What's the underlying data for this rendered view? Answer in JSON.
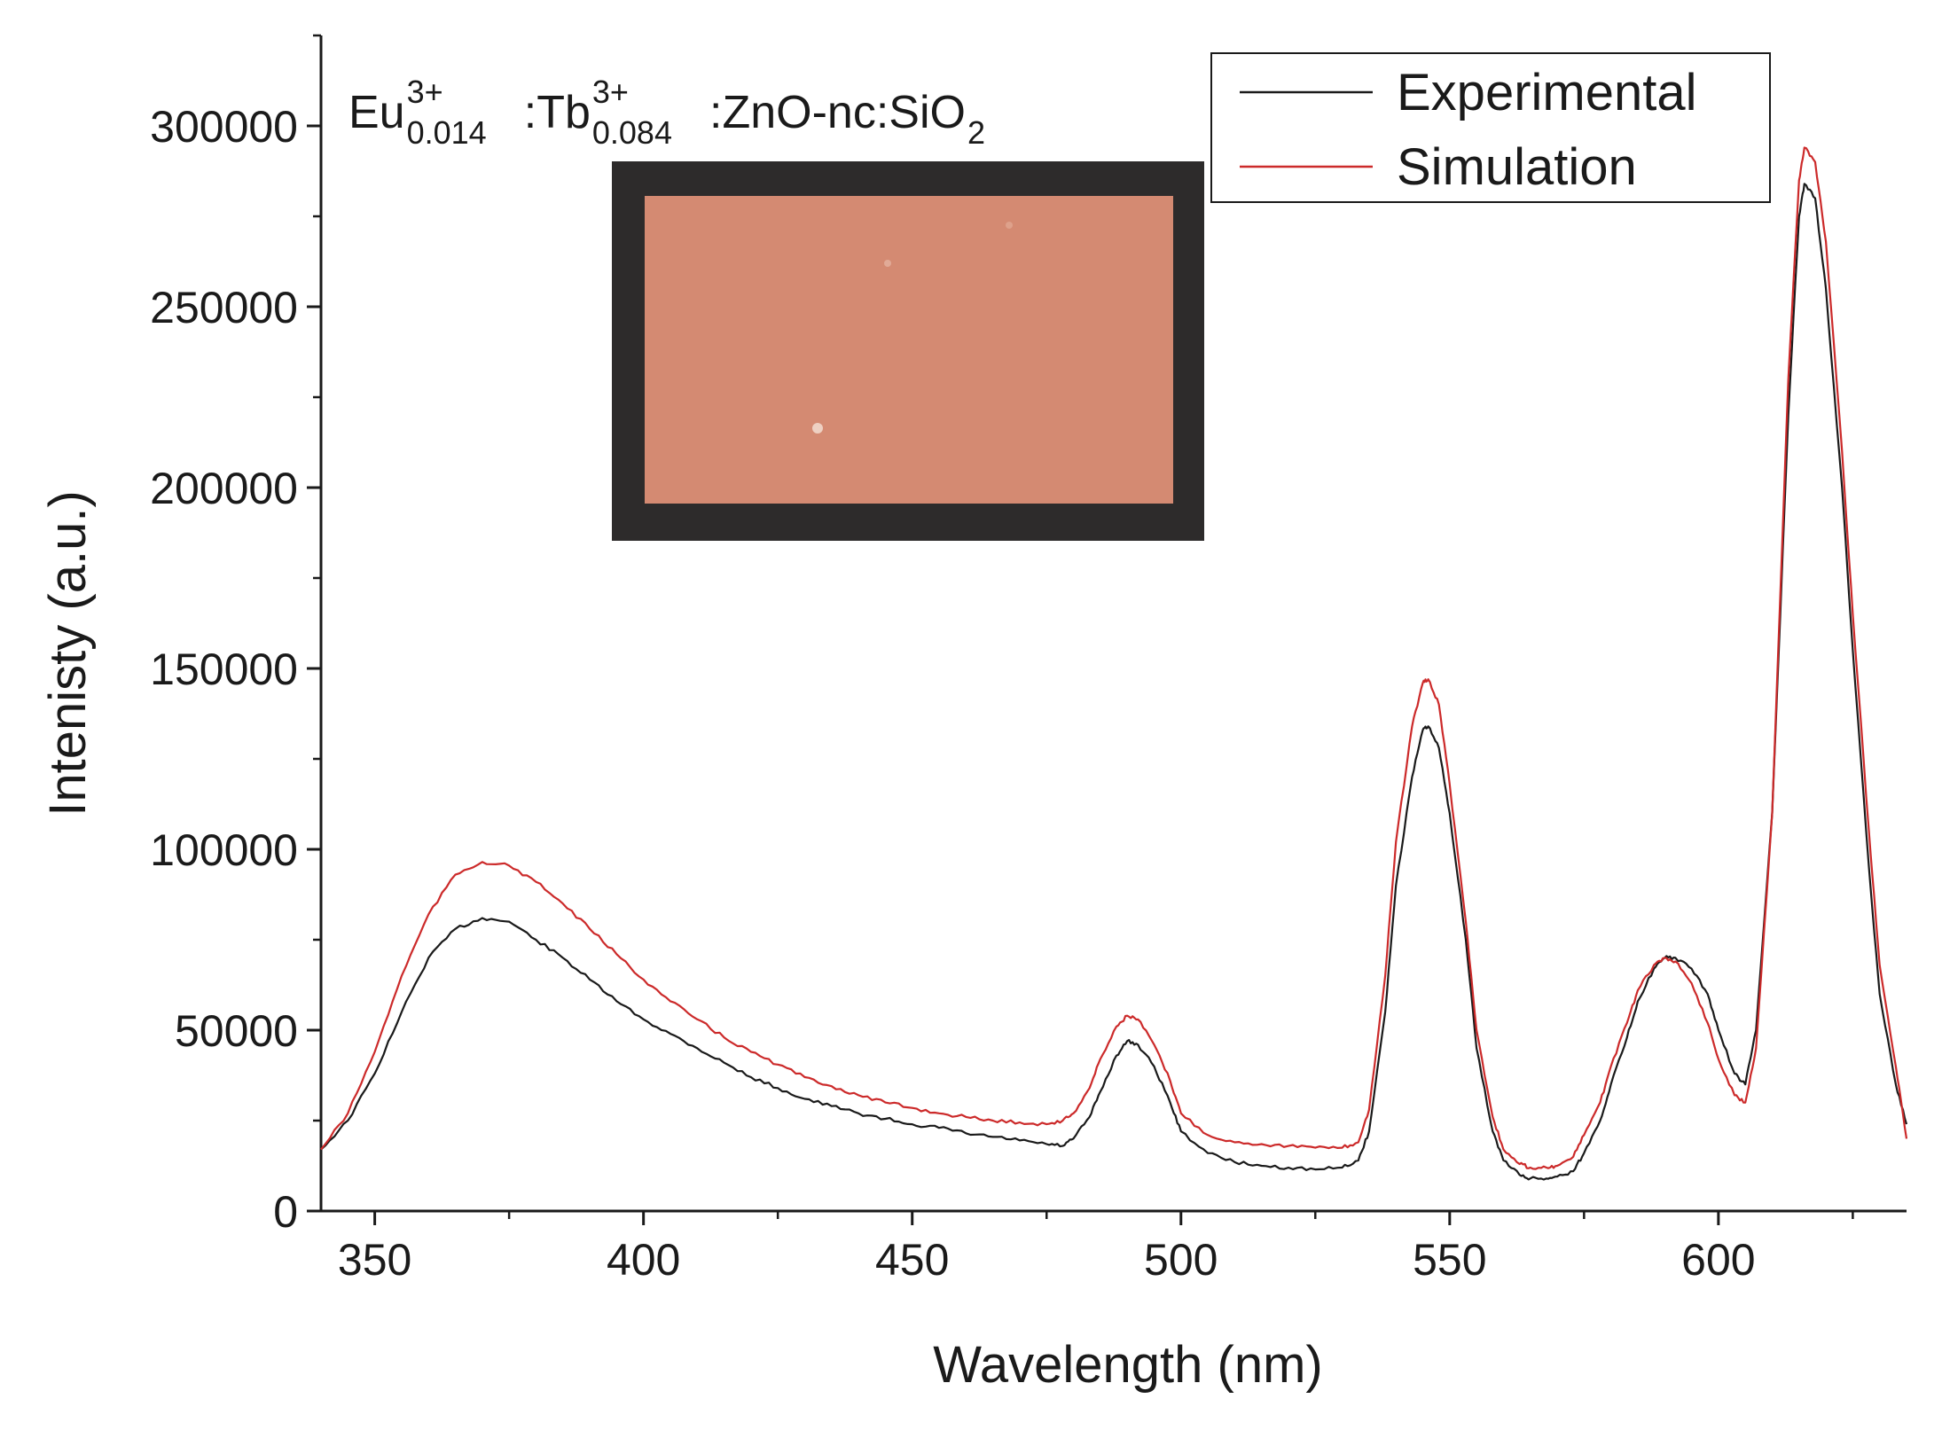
{
  "chart_data": {
    "type": "line",
    "title": "",
    "xlabel": "Wavelength (nm)",
    "ylabel": "Intenisty (a.u.)",
    "xlim": [
      340,
      635
    ],
    "ylim": [
      0,
      325000
    ],
    "x_major_ticks": [
      350,
      400,
      450,
      500,
      550,
      600
    ],
    "x_tick_labels": [
      "350",
      "400",
      "450",
      "500",
      "550",
      "600"
    ],
    "y_major_ticks": [
      0,
      50000,
      100000,
      150000,
      200000,
      250000,
      300000
    ],
    "y_tick_labels": [
      "0",
      "50000",
      "100000",
      "150000",
      "200000",
      "250000",
      "300000"
    ],
    "grid": false,
    "legend_position": "top-right",
    "annotation": {
      "parts": [
        {
          "text": "Eu",
          "sup": "3+",
          "sub": "0.014"
        },
        {
          "text": ":Tb",
          "sup": "3+",
          "sub": "0.084"
        },
        {
          "text": ":ZnO-nc:SiO",
          "sup": "",
          "sub": "2"
        }
      ]
    },
    "inset_photo": {
      "frame_color": "#2d2b2b",
      "sample_color": "#d48a72"
    },
    "series": [
      {
        "name": "Experimental",
        "color": "#1a1a1a",
        "x": [
          340,
          345,
          350,
          355,
          360,
          365,
          370,
          375,
          380,
          385,
          390,
          395,
          400,
          405,
          410,
          415,
          420,
          425,
          430,
          435,
          440,
          445,
          450,
          455,
          460,
          465,
          470,
          475,
          478,
          480,
          483,
          485,
          488,
          490,
          492,
          495,
          498,
          500,
          505,
          510,
          515,
          520,
          525,
          530,
          533,
          535,
          538,
          540,
          543,
          545,
          546,
          548,
          550,
          553,
          555,
          558,
          560,
          563,
          565,
          568,
          570,
          573,
          575,
          578,
          580,
          583,
          585,
          588,
          590,
          592,
          595,
          598,
          600,
          603,
          605,
          607,
          610,
          613,
          615,
          616,
          618,
          620,
          623,
          625,
          628,
          630,
          633,
          635
        ],
        "y": [
          17000,
          25000,
          38000,
          55000,
          70000,
          78000,
          81000,
          80000,
          75000,
          70000,
          64000,
          58000,
          53000,
          49000,
          45000,
          41000,
          37000,
          34000,
          31000,
          29000,
          27000,
          25500,
          24000,
          23000,
          21500,
          20500,
          19500,
          18500,
          18000,
          20000,
          26000,
          33000,
          43000,
          47000,
          46000,
          40000,
          30000,
          22000,
          16000,
          13500,
          12500,
          12000,
          11500,
          12000,
          14000,
          22000,
          55000,
          90000,
          120000,
          133000,
          134000,
          128000,
          110000,
          75000,
          45000,
          22000,
          14000,
          10000,
          9000,
          9000,
          9500,
          11000,
          16000,
          25000,
          35000,
          48000,
          58000,
          67000,
          70000,
          70000,
          67000,
          60000,
          50000,
          38000,
          35000,
          50000,
          110000,
          220000,
          275000,
          284000,
          280000,
          255000,
          200000,
          155000,
          95000,
          60000,
          35000,
          24000
        ]
      },
      {
        "name": "Simulation",
        "color": "#cc2a2a",
        "x": [
          340,
          345,
          350,
          355,
          360,
          365,
          370,
          375,
          380,
          385,
          390,
          395,
          400,
          405,
          410,
          415,
          420,
          425,
          430,
          435,
          440,
          445,
          450,
          455,
          460,
          465,
          470,
          475,
          478,
          480,
          483,
          485,
          488,
          490,
          492,
          495,
          498,
          500,
          505,
          510,
          515,
          520,
          525,
          530,
          533,
          535,
          538,
          540,
          543,
          545,
          546,
          548,
          550,
          553,
          555,
          558,
          560,
          563,
          565,
          568,
          570,
          573,
          575,
          578,
          580,
          583,
          585,
          588,
          590,
          592,
          595,
          598,
          600,
          603,
          605,
          607,
          610,
          613,
          615,
          616,
          618,
          620,
          623,
          625,
          628,
          630,
          633,
          635
        ],
        "y": [
          17000,
          27000,
          44000,
          65000,
          82000,
          93000,
          96500,
          95500,
          91000,
          85000,
          78000,
          71000,
          64000,
          58000,
          53000,
          48000,
          44000,
          40500,
          37000,
          34500,
          32000,
          30000,
          28500,
          27000,
          26000,
          25000,
          24500,
          24000,
          25000,
          27000,
          34000,
          42000,
          51000,
          54000,
          53000,
          46000,
          36000,
          27000,
          21000,
          19000,
          18500,
          18000,
          17500,
          17500,
          19000,
          28000,
          65000,
          102000,
          134000,
          146000,
          147000,
          140000,
          118000,
          80000,
          50000,
          26000,
          17000,
          13000,
          12000,
          12000,
          12500,
          15000,
          21000,
          30000,
          40000,
          52000,
          61000,
          68000,
          70000,
          69000,
          63000,
          52000,
          42000,
          32000,
          30000,
          45000,
          110000,
          230000,
          285000,
          294000,
          290000,
          268000,
          210000,
          165000,
          105000,
          68000,
          40000,
          20000
        ]
      }
    ]
  }
}
